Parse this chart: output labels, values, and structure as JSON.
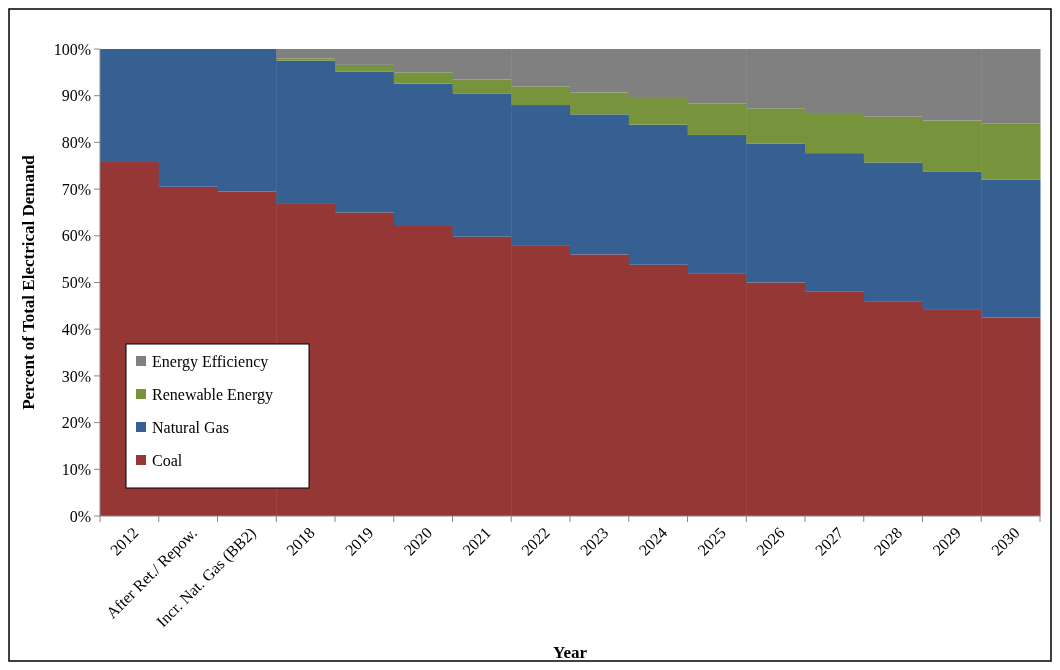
{
  "chart_data": {
    "type": "bar",
    "stacked": true,
    "xlabel": "Year",
    "ylabel": "Percent of Total Electrical Demand",
    "categories": [
      "2012",
      "After Ret./ Repow.",
      "Incr. Nat. Gas (BB2)",
      "2018",
      "2019",
      "2020",
      "2021",
      "2022",
      "2023",
      "2024",
      "2025",
      "2026",
      "2027",
      "2028",
      "2029",
      "2030"
    ],
    "series": [
      {
        "name": "Coal",
        "color": "#953735",
        "values": [
          76,
          70.5,
          69.5,
          67,
          65,
          62.3,
          59.8,
          58,
          56,
          53.8,
          52,
          50,
          48,
          46,
          44.3,
          42.5
        ]
      },
      {
        "name": "Natural Gas",
        "color": "#376092",
        "values": [
          24,
          29.5,
          30.5,
          30.5,
          30.2,
          30.3,
          30.7,
          30,
          30,
          30,
          29.6,
          29.7,
          29.7,
          29.7,
          29.5,
          29.5
        ]
      },
      {
        "name": "Renewable Energy",
        "color": "#77933c",
        "values": [
          0,
          0,
          0,
          0.5,
          1.4,
          2.4,
          3,
          4,
          4.7,
          5.7,
          6.7,
          7.6,
          8.6,
          9.8,
          10.9,
          12
        ]
      },
      {
        "name": "Energy Efficiency",
        "color": "#808080",
        "values": [
          0,
          0,
          0,
          2,
          3.4,
          5,
          6.5,
          8,
          9.3,
          10.5,
          11.7,
          12.7,
          13.7,
          14.5,
          15.3,
          16
        ]
      }
    ],
    "ylim": [
      0,
      100
    ],
    "yticks": [
      {
        "value": 0,
        "label": "0%"
      },
      {
        "value": 10,
        "label": "10%"
      },
      {
        "value": 20,
        "label": "20%"
      },
      {
        "value": 30,
        "label": "30%"
      },
      {
        "value": 40,
        "label": "40%"
      },
      {
        "value": 50,
        "label": "50%"
      },
      {
        "value": 60,
        "label": "60%"
      },
      {
        "value": 70,
        "label": "70%"
      },
      {
        "value": 80,
        "label": "80%"
      },
      {
        "value": 90,
        "label": "90%"
      },
      {
        "value": 100,
        "label": "100%"
      }
    ],
    "legend": "left"
  }
}
